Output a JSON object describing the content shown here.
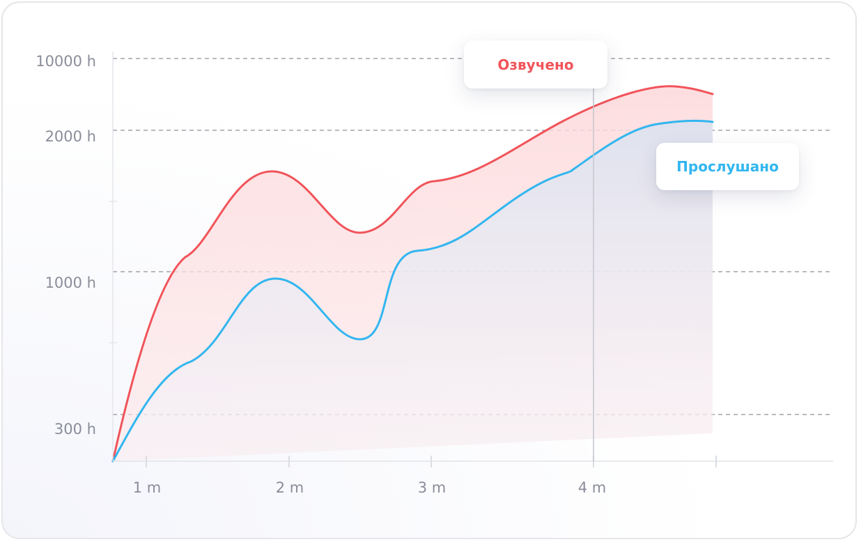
{
  "chart_data": {
    "type": "area",
    "x_ticks": [
      "1 m",
      "2 m",
      "3 m",
      "4 m",
      ""
    ],
    "y_ticks": [
      "10000 h",
      "2000 h",
      "1000 h",
      "300 h"
    ],
    "series": [
      {
        "name": "Озвучено",
        "color": "#f0545a",
        "x": [
          0,
          0.25,
          1.0,
          1.65,
          2.0,
          2.45,
          3.6,
          4.3
        ],
        "y": [
          0,
          1100,
          1700,
          1300,
          1600,
          1700,
          2900,
          3800
        ]
      },
      {
        "name": "Прослушано",
        "color": "#32b6ef",
        "x": [
          0,
          0.3,
          1.0,
          1.6,
          2.0,
          2.6,
          3.5,
          4.3
        ],
        "y": [
          0,
          550,
          950,
          650,
          1150,
          1250,
          2100,
          2800
        ]
      }
    ],
    "active_x": "4 m",
    "grid": "dashed-horizontal",
    "legend": "callouts"
  }
}
